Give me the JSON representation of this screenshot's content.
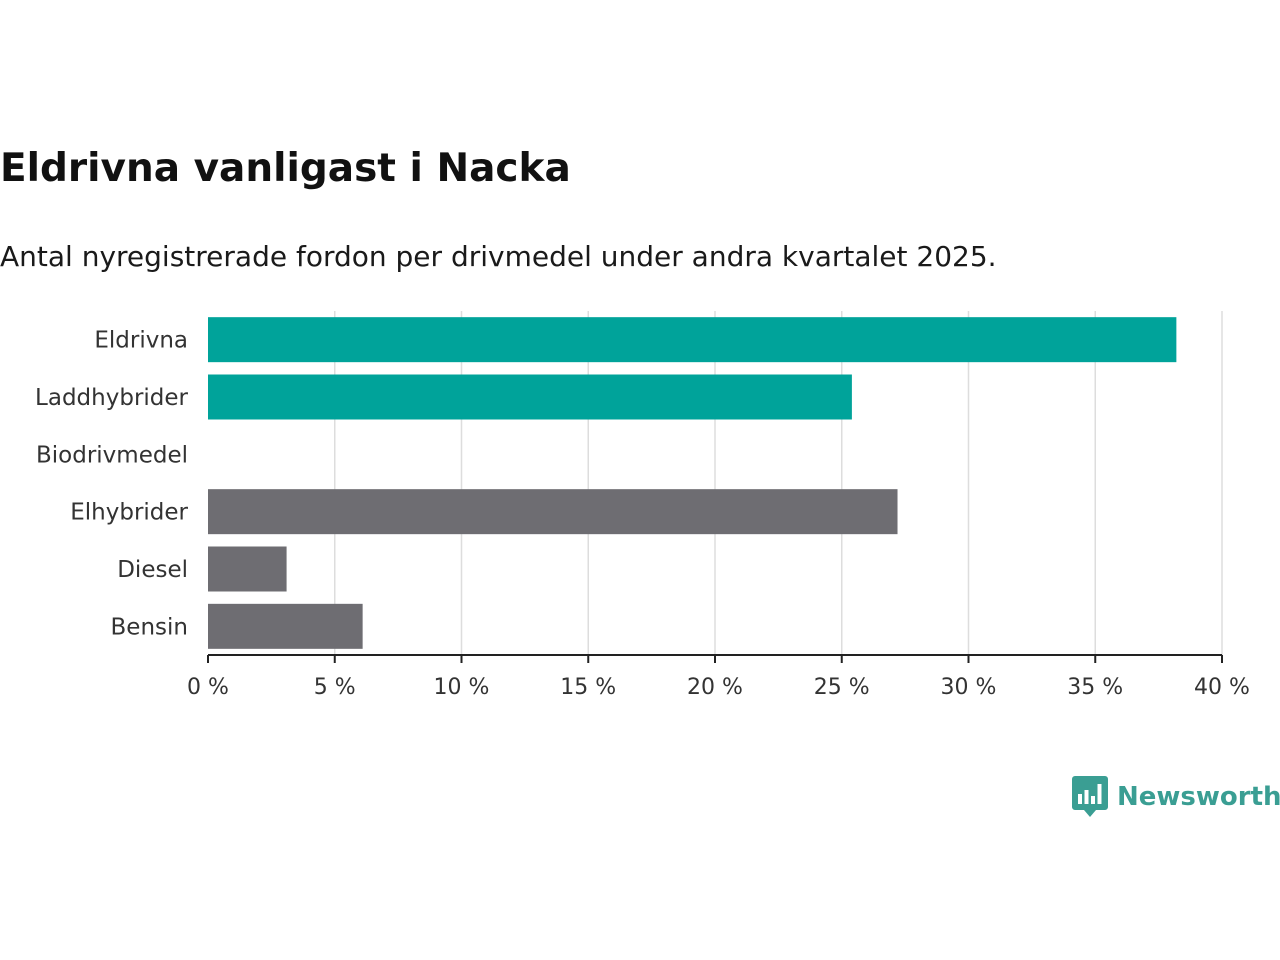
{
  "title": "Eldrivna vanligast i Nacka",
  "subtitle": "Antal nyregistrerade fordon per drivmedel under andra kvartalet 2025.",
  "brand": {
    "name": "Newsworthy",
    "icon": "newsworthy-logo-icon",
    "color": "#3a9e93"
  },
  "chart_data": {
    "type": "bar",
    "orientation": "horizontal",
    "categories": [
      "Eldrivna",
      "Laddhybrider",
      "Biodrivmedel",
      "Elhybrider",
      "Diesel",
      "Bensin"
    ],
    "values": [
      38.2,
      25.4,
      0,
      27.2,
      3.1,
      6.1
    ],
    "colors": [
      "#00a39a",
      "#00a39a",
      "#00a39a",
      "#6e6d72",
      "#6e6d72",
      "#6e6d72"
    ],
    "xlim": [
      0,
      40
    ],
    "xticks": [
      0,
      5,
      10,
      15,
      20,
      25,
      30,
      35,
      40
    ],
    "xtick_labels": [
      "0 %",
      "5 %",
      "10 %",
      "15 %",
      "20 %",
      "25 %",
      "30 %",
      "35 %",
      "40 %"
    ],
    "grid": true
  }
}
